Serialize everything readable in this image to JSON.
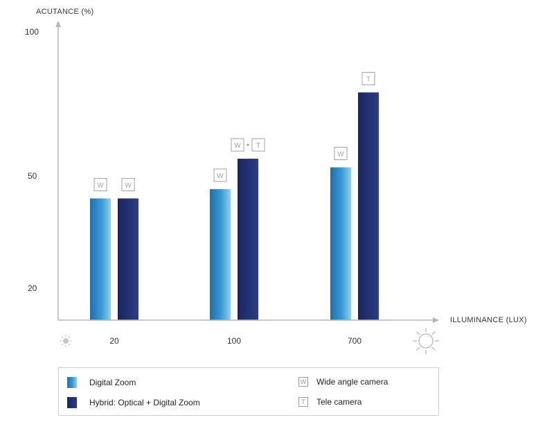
{
  "chart_data": {
    "type": "bar",
    "ylabel": "ACUTANCE (%)",
    "xlabel": "ILLUMINANCE (LUX)",
    "categories": [
      "20",
      "100",
      "700"
    ],
    "yticks": [
      "100",
      "50",
      "20"
    ],
    "series": [
      {
        "name": "Digital Zoom",
        "values": [
          44,
          46.5,
          53
        ],
        "tags": [
          "W",
          "W",
          "W"
        ]
      },
      {
        "name": "Hybrid: Optical + Digital Zoom",
        "values": [
          44,
          56,
          79
        ],
        "tags": [
          "W",
          "W • T",
          "T"
        ]
      }
    ],
    "colors": {
      "digital": "#2a8cc4",
      "hybrid": "#1f2f6e",
      "axis": "#b5b5b5",
      "tag": "#a0a0a0"
    }
  },
  "legend": {
    "digital_label": "Digital Zoom",
    "hybrid_label": "Hybrid: Optical + Digital Zoom",
    "wide_box": "W",
    "wide_label": "Wide angle camera",
    "tele_box": "T",
    "tele_label": "Tele camera"
  },
  "icons": {
    "low_light": "dim-sun-icon",
    "high_light": "bright-sun-icon"
  }
}
